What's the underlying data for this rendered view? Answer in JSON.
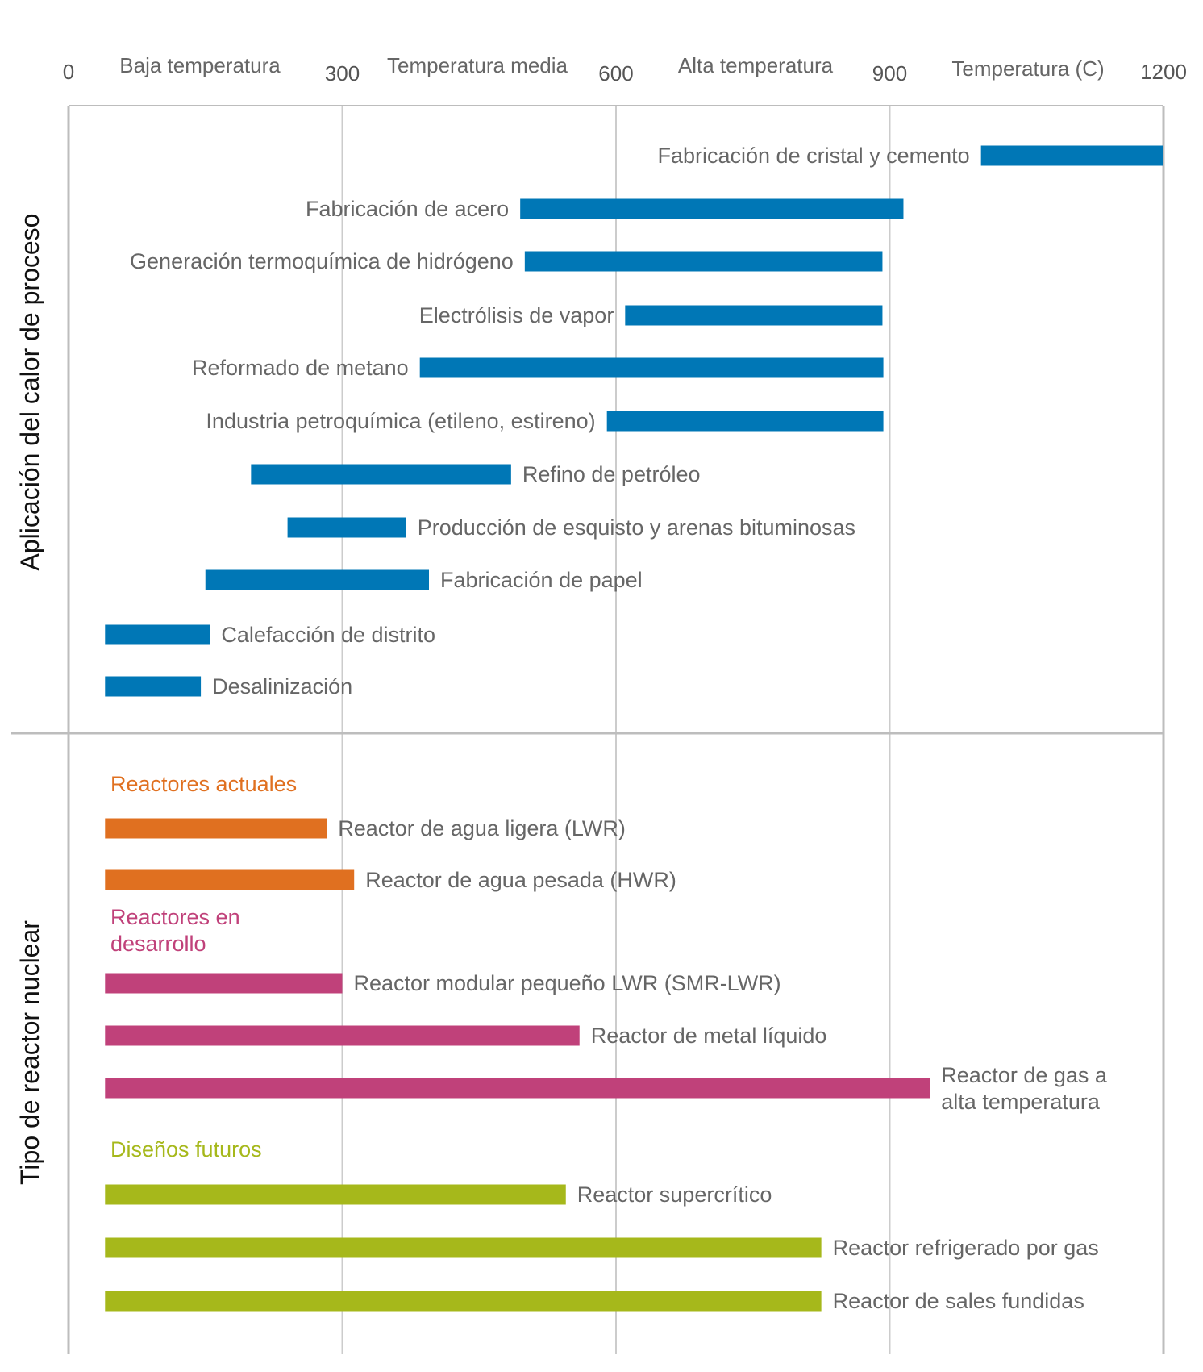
{
  "chart_data": {
    "type": "bar",
    "orientation": "horizontal",
    "x_axis": {
      "label": "Temperatura (C)",
      "ticks": [
        0,
        300,
        600,
        900,
        1200
      ],
      "range": [
        0,
        1200
      ],
      "ranges": [
        "Baja temperatura",
        "Temperatura media",
        "Alta temperatura"
      ],
      "grid": true
    },
    "sections": [
      {
        "title": "Aplicación del calor de proceso",
        "color": "#0077b6",
        "bars": [
          {
            "label": "Fabricación de cristal y cemento",
            "start": 1000,
            "end": 1200
          },
          {
            "label": "Fabricación de acero",
            "start": 495,
            "end": 915
          },
          {
            "label": "Generación termoquímica de hidrógeno",
            "start": 500,
            "end": 892
          },
          {
            "label": "Electrólisis de vapor",
            "start": 610,
            "end": 892
          },
          {
            "label": "Reformado de metano",
            "start": 385,
            "end": 893
          },
          {
            "label": "Industria petroquímica (etileno, estireno)",
            "start": 590,
            "end": 893
          },
          {
            "label": "Refino de petróleo",
            "start": 200,
            "end": 485
          },
          {
            "label": "Producción de esquisto y arenas bituminosas",
            "start": 240,
            "end": 370
          },
          {
            "label": "Fabricación de papel",
            "start": 150,
            "end": 395
          },
          {
            "label": "Calefacción de distrito",
            "start": 40,
            "end": 155
          },
          {
            "label": "Desalinización",
            "start": 40,
            "end": 145
          }
        ]
      },
      {
        "title": "Tipo de reactor nuclear",
        "groups": [
          {
            "label": "Reactores actuales",
            "color": "#e07020",
            "bars": [
              {
                "label": "Reactor de agua ligera (LWR)",
                "start": 40,
                "end": 283
              },
              {
                "label": "Reactor de agua pesada (HWR)",
                "start": 40,
                "end": 313
              }
            ]
          },
          {
            "label": "Reactores en desarrollo",
            "label_lines": [
              "Reactores en",
              "desarrollo"
            ],
            "color": "#c0417a",
            "bars": [
              {
                "label": "Reactor modular pequeño LWR (SMR-LWR)",
                "start": 40,
                "end": 300
              },
              {
                "label": "Reactor de metal líquido",
                "start": 40,
                "end": 560
              },
              {
                "label": "Reactor de gas a alta temperatura",
                "label_lines": [
                  "Reactor de gas a",
                  "alta temperatura"
                ],
                "start": 40,
                "end": 944
              }
            ]
          },
          {
            "label": "Diseños futuros",
            "color": "#a6b81b",
            "bars": [
              {
                "label": "Reactor supercrítico",
                "start": 40,
                "end": 545
              },
              {
                "label": "Reactor refrigerado por gas",
                "start": 40,
                "end": 825
              },
              {
                "label": "Reactor de sales fundidas",
                "start": 40,
                "end": 825
              }
            ]
          }
        ]
      }
    ]
  }
}
